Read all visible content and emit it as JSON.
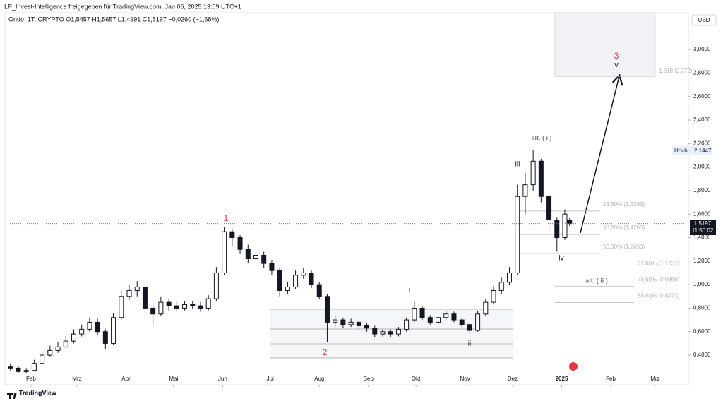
{
  "header": {
    "line1": "LP_Invest-Intelligence freigegeben für TradingView.com, Jan 06, 2025 13:09 UTC+1",
    "line2": "Ondo, 1T, CRYPTO  O1,5457  H1,5657  L1,4991  C1,5197  −0,0260 (−1,68%)"
  },
  "currency": "USD",
  "price_tag": {
    "price": "1,5197",
    "countdown": "11:50:02"
  },
  "high_tag": {
    "label": "Hoch",
    "price": "2,1447"
  },
  "footer": "TradingView",
  "chart_data": {
    "type": "candlestick",
    "xlim": [
      "2024-01-16",
      "2025-03-22"
    ],
    "xticks": [
      {
        "value": "2024-02-01",
        "label": "Feb"
      },
      {
        "value": "2024-03-01",
        "label": "Mrz"
      },
      {
        "value": "2024-04-01",
        "label": "Apr"
      },
      {
        "value": "2024-05-01",
        "label": "Mai"
      },
      {
        "value": "2024-06-01",
        "label": "Jun"
      },
      {
        "value": "2024-07-01",
        "label": "Jul"
      },
      {
        "value": "2024-08-01",
        "label": "Aug"
      },
      {
        "value": "2024-09-01",
        "label": "Sep"
      },
      {
        "value": "2024-10-01",
        "label": "Okt"
      },
      {
        "value": "2024-11-01",
        "label": "Nov"
      },
      {
        "value": "2024-12-01",
        "label": "Dez"
      },
      {
        "value": "2025-01-01",
        "label": "2025"
      },
      {
        "value": "2025-02-01",
        "label": "Feb"
      },
      {
        "value": "2025-03-01",
        "label": "Mrz"
      }
    ],
    "ylim": [
      0.148,
      3.313
    ],
    "yticks": [
      {
        "value": 0.4,
        "label": "0,4000"
      },
      {
        "value": 0.6,
        "label": "0,6000"
      },
      {
        "value": 0.8,
        "label": "0,8000"
      },
      {
        "value": 1.0,
        "label": "1,0000"
      },
      {
        "value": 1.2,
        "label": "1,2000"
      },
      {
        "value": 1.4,
        "label": "1,4000"
      },
      {
        "value": 1.6,
        "label": "1,6000"
      },
      {
        "value": 1.8,
        "label": "1,8000"
      },
      {
        "value": 2.0,
        "label": "2,0000"
      },
      {
        "value": 2.2,
        "label": "2,2000"
      },
      {
        "value": 2.4,
        "label": "2,4000"
      },
      {
        "value": 2.6,
        "label": "2,6000"
      },
      {
        "value": 2.8,
        "label": "2,8000"
      },
      {
        "value": 3.0,
        "label": "3,0000"
      }
    ],
    "grid": false,
    "color": "#131722",
    "x": [
      "2024-01-19",
      "2024-01-24",
      "2024-01-29",
      "2024-02-03",
      "2024-02-08",
      "2024-02-13",
      "2024-02-18",
      "2024-02-23",
      "2024-02-28",
      "2024-03-04",
      "2024-03-09",
      "2024-03-14",
      "2024-03-19",
      "2024-03-24",
      "2024-03-29",
      "2024-04-03",
      "2024-04-08",
      "2024-04-13",
      "2024-04-18",
      "2024-04-23",
      "2024-04-28",
      "2024-05-03",
      "2024-05-08",
      "2024-05-13",
      "2024-05-18",
      "2024-05-23",
      "2024-05-28",
      "2024-06-02",
      "2024-06-07",
      "2024-06-12",
      "2024-06-17",
      "2024-06-22",
      "2024-06-27",
      "2024-07-02",
      "2024-07-07",
      "2024-07-12",
      "2024-07-17",
      "2024-07-22",
      "2024-07-27",
      "2024-08-01",
      "2024-08-06",
      "2024-08-11",
      "2024-08-16",
      "2024-08-21",
      "2024-08-26",
      "2024-08-31",
      "2024-09-05",
      "2024-09-10",
      "2024-09-15",
      "2024-09-20",
      "2024-09-25",
      "2024-09-30",
      "2024-10-05",
      "2024-10-10",
      "2024-10-15",
      "2024-10-20",
      "2024-10-25",
      "2024-10-30",
      "2024-11-04",
      "2024-11-09",
      "2024-11-14",
      "2024-11-19",
      "2024-11-24",
      "2024-11-29",
      "2024-12-04",
      "2024-12-09",
      "2024-12-14",
      "2024-12-19",
      "2024-12-24",
      "2024-12-29",
      "2025-01-03",
      "2025-01-06"
    ],
    "open": [
      0.3,
      0.29,
      0.26,
      0.27,
      0.33,
      0.4,
      0.44,
      0.47,
      0.52,
      0.58,
      0.62,
      0.68,
      0.6,
      0.5,
      0.72,
      0.9,
      0.95,
      0.98,
      0.8,
      0.75,
      0.85,
      0.82,
      0.8,
      0.83,
      0.82,
      0.8,
      0.88,
      1.1,
      1.45,
      1.4,
      1.3,
      1.22,
      1.25,
      1.18,
      1.12,
      0.95,
      0.98,
      1.08,
      1.1,
      1.0,
      0.9,
      0.68,
      0.7,
      0.66,
      0.68,
      0.65,
      0.63,
      0.58,
      0.6,
      0.58,
      0.62,
      0.7,
      0.8,
      0.72,
      0.68,
      0.72,
      0.75,
      0.7,
      0.66,
      0.61,
      0.75,
      0.85,
      0.95,
      1.02,
      1.1,
      1.75,
      1.85,
      2.05,
      1.75,
      1.55,
      1.4,
      1.5457
    ],
    "high": [
      0.33,
      0.31,
      0.29,
      0.36,
      0.43,
      0.48,
      0.51,
      0.56,
      0.62,
      0.66,
      0.72,
      0.71,
      0.62,
      0.76,
      0.95,
      1.0,
      1.03,
      1.0,
      0.84,
      0.9,
      0.88,
      0.86,
      0.86,
      0.86,
      0.85,
      0.91,
      1.15,
      1.49,
      1.47,
      1.42,
      1.34,
      1.3,
      1.28,
      1.21,
      1.14,
      1.02,
      1.12,
      1.14,
      1.12,
      1.02,
      0.92,
      0.74,
      0.72,
      0.71,
      0.7,
      0.67,
      0.65,
      0.62,
      0.62,
      0.64,
      0.72,
      0.86,
      0.82,
      0.74,
      0.75,
      0.78,
      0.77,
      0.72,
      0.68,
      0.78,
      0.88,
      0.99,
      1.06,
      1.15,
      1.85,
      1.95,
      2.1447,
      2.07,
      1.78,
      1.57,
      1.64,
      1.5657
    ],
    "low": [
      0.27,
      0.25,
      0.25,
      0.26,
      0.32,
      0.39,
      0.42,
      0.46,
      0.5,
      0.56,
      0.6,
      0.57,
      0.45,
      0.49,
      0.7,
      0.87,
      0.9,
      0.76,
      0.65,
      0.73,
      0.78,
      0.77,
      0.78,
      0.79,
      0.77,
      0.78,
      0.86,
      1.08,
      1.33,
      1.26,
      1.18,
      1.17,
      1.14,
      1.08,
      0.9,
      0.92,
      0.96,
      1.05,
      0.97,
      0.88,
      0.51,
      0.64,
      0.63,
      0.64,
      0.62,
      0.6,
      0.55,
      0.56,
      0.55,
      0.56,
      0.6,
      0.68,
      0.7,
      0.66,
      0.66,
      0.7,
      0.68,
      0.64,
      0.58,
      0.6,
      0.73,
      0.83,
      0.92,
      1.0,
      1.08,
      1.6,
      1.8,
      1.7,
      1.45,
      1.28,
      1.38,
      1.4991
    ],
    "close": [
      0.29,
      0.26,
      0.27,
      0.33,
      0.4,
      0.44,
      0.47,
      0.52,
      0.58,
      0.62,
      0.68,
      0.6,
      0.5,
      0.72,
      0.9,
      0.95,
      0.98,
      0.8,
      0.75,
      0.85,
      0.82,
      0.8,
      0.83,
      0.82,
      0.8,
      0.88,
      1.1,
      1.45,
      1.4,
      1.3,
      1.22,
      1.25,
      1.18,
      1.12,
      0.95,
      0.98,
      1.08,
      1.1,
      1.0,
      0.9,
      0.68,
      0.7,
      0.66,
      0.68,
      0.65,
      0.63,
      0.58,
      0.6,
      0.58,
      0.62,
      0.7,
      0.8,
      0.72,
      0.68,
      0.72,
      0.75,
      0.7,
      0.66,
      0.61,
      0.75,
      0.85,
      0.95,
      1.02,
      1.1,
      1.75,
      1.85,
      2.05,
      1.75,
      1.55,
      1.4,
      1.6,
      1.5197
    ],
    "fib_levels": [
      {
        "value": 2.772,
        "label": "1,618 (2,772)"
      },
      {
        "value": 1.6263,
        "label": "23,60% (1,6263)"
      },
      {
        "value": 1.4265,
        "label": "38,20% (1,4265)"
      },
      {
        "value": 1.265,
        "label": "50,00% (1,2650)"
      },
      {
        "value": 1.1237,
        "label": "61,80% (1,1237)"
      },
      {
        "value": 0.9866,
        "label": "78,60% (0,9866)"
      },
      {
        "value": 0.8473,
        "label": "88,60% (0,8473)"
      }
    ],
    "annotations": [
      {
        "text": "1",
        "color": "#e0393e"
      },
      {
        "text": "2",
        "color": "#e0393e"
      },
      {
        "text": "3",
        "color": "#e0393e"
      },
      {
        "text": "v",
        "color": "#131722"
      },
      {
        "text": "i",
        "color": "#131722"
      },
      {
        "text": "ii",
        "color": "#131722"
      },
      {
        "text": "iii",
        "color": "#131722"
      },
      {
        "text": "iv",
        "color": "#131722"
      },
      {
        "text": "alt. ( i )",
        "color": "#787b86"
      },
      {
        "text": "alt. ( ii )",
        "color": "#787b86"
      }
    ]
  }
}
